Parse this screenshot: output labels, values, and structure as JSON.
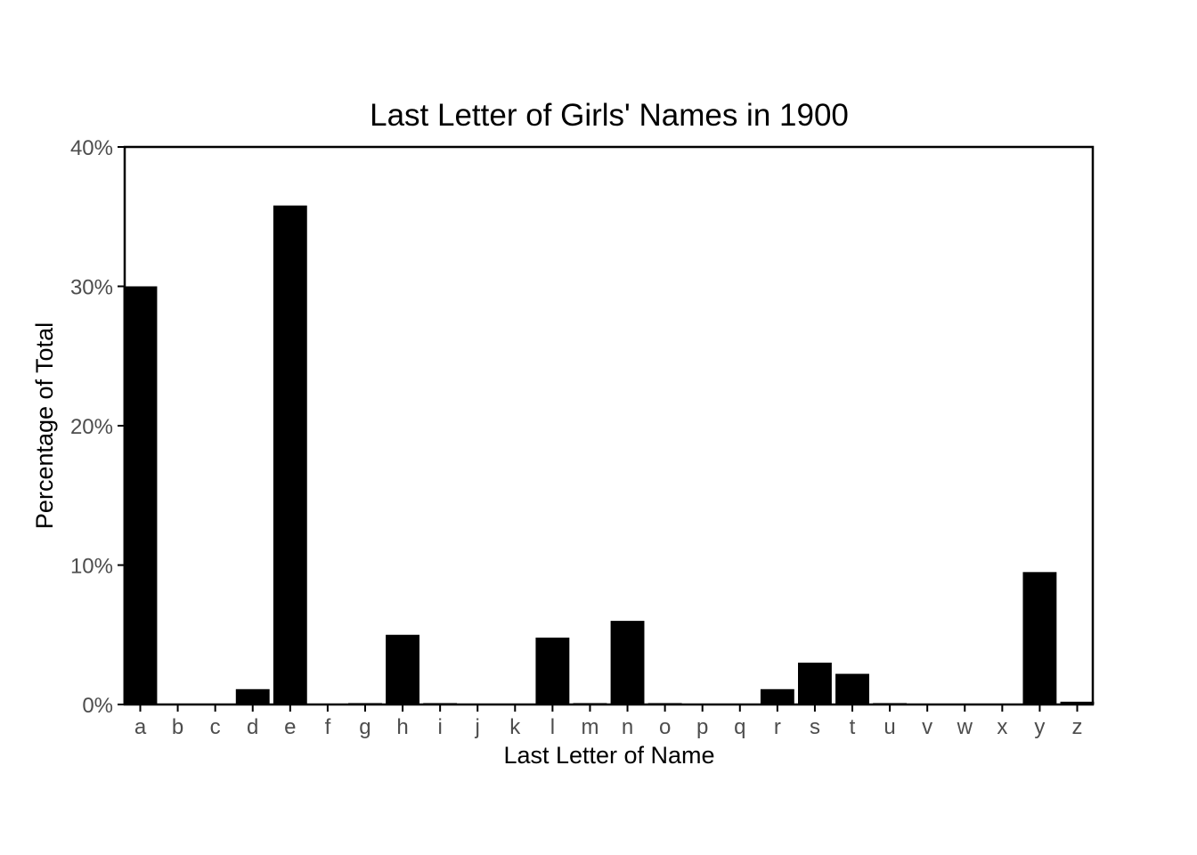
{
  "chart_data": {
    "type": "bar",
    "title": "Last Letter of Girls' Names in 1900",
    "xlabel": "Last Letter of Name",
    "ylabel": "Percentage of Total",
    "categories": [
      "a",
      "b",
      "c",
      "d",
      "e",
      "f",
      "g",
      "h",
      "i",
      "j",
      "k",
      "l",
      "m",
      "n",
      "o",
      "p",
      "q",
      "r",
      "s",
      "t",
      "u",
      "v",
      "w",
      "x",
      "y",
      "z"
    ],
    "values": [
      30.0,
      0.03,
      0.05,
      1.1,
      35.8,
      0.05,
      0.1,
      5.0,
      0.1,
      0.03,
      0.05,
      4.8,
      0.1,
      6.0,
      0.1,
      0.03,
      0.02,
      1.1,
      3.0,
      2.2,
      0.1,
      0.03,
      0.05,
      0.02,
      9.5,
      0.2
    ],
    "ylim": [
      0,
      40
    ],
    "yticks": [
      0,
      10,
      20,
      30,
      40
    ],
    "ytick_labels": [
      "0%",
      "10%",
      "20%",
      "30%",
      "40%"
    ],
    "grid": false,
    "colors": {
      "bar": "#000000",
      "axis": "#000000",
      "tick_text": "#4d4d4d",
      "background": "#ffffff"
    }
  }
}
